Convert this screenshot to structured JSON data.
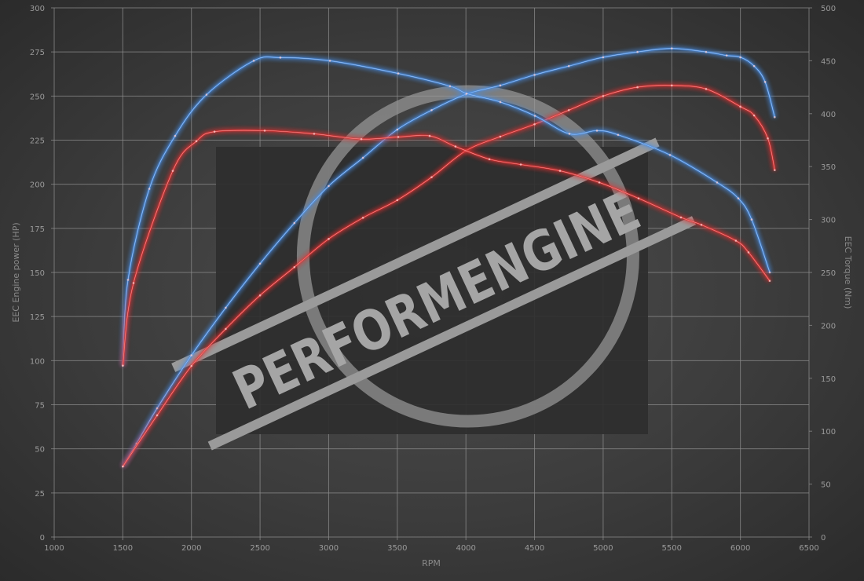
{
  "chart_data": {
    "type": "line",
    "xlabel": "RPM",
    "ylabel": "EEC Engine power (HP)",
    "y2label": "EEC Torque (Nm)",
    "xlim": [
      1000,
      6500
    ],
    "ylim": [
      0,
      300
    ],
    "y2lim": [
      0,
      500
    ],
    "xticks": [
      1000,
      1500,
      2000,
      2500,
      3000,
      3500,
      4000,
      4500,
      5000,
      5500,
      6000,
      6500
    ],
    "yticks": [
      0,
      25,
      50,
      75,
      100,
      125,
      150,
      175,
      200,
      225,
      250,
      275,
      300
    ],
    "y2ticks": [
      0,
      50,
      100,
      150,
      200,
      250,
      300,
      350,
      400,
      450,
      500
    ],
    "grid": true,
    "legend": "none",
    "watermark": "PERFORMENGINE",
    "series": [
      {
        "axis": "left",
        "color": "#4a8fe6",
        "x": [
          1500,
          1600,
          1750,
          2000,
          2250,
          2500,
          2750,
          3000,
          3250,
          3500,
          3750,
          4000,
          4250,
          4500,
          4750,
          5000,
          5250,
          5500,
          5750,
          5900,
          6000,
          6100,
          6180,
          6250
        ],
        "values": [
          40,
          53,
          73,
          103,
          130,
          155,
          178,
          199,
          215,
          231,
          242,
          251,
          256,
          262,
          267,
          272,
          275,
          277,
          275,
          273,
          272,
          267,
          258,
          238
        ]
      },
      {
        "axis": "left",
        "color": "#e23232",
        "x": [
          1500,
          1750,
          2000,
          2250,
          2500,
          2750,
          3000,
          3250,
          3500,
          3750,
          4000,
          4250,
          4500,
          4750,
          5000,
          5250,
          5500,
          5750,
          6000,
          6100,
          6200,
          6250
        ],
        "values": [
          40,
          69,
          97,
          118,
          137,
          153,
          169,
          181,
          191,
          204,
          219,
          227,
          234,
          242,
          250,
          255,
          256,
          254,
          244,
          239,
          226,
          208
        ]
      },
      {
        "axis": "right",
        "color": "#4a8fe6",
        "x": [
          1500,
          1538,
          1693,
          1881,
          2110,
          2454,
          2648,
          3009,
          3507,
          3884,
          4005,
          4251,
          4503,
          4754,
          4955,
          5109,
          5487,
          5830,
          5985,
          6082,
          6214
        ],
        "values": [
          162,
          243,
          329,
          379,
          418,
          450,
          453,
          450,
          438,
          426,
          419,
          411,
          398,
          381,
          384,
          380,
          361,
          335,
          320,
          300,
          250
        ]
      },
      {
        "axis": "right",
        "color": "#e23232",
        "x": [
          1500,
          1578,
          1864,
          2036,
          2168,
          2534,
          2894,
          3238,
          3507,
          3736,
          3924,
          4171,
          4400,
          4686,
          4972,
          5258,
          5567,
          5716,
          5967,
          6059,
          6214
        ],
        "values": [
          162,
          240,
          346,
          374,
          383,
          384,
          381,
          376,
          378,
          379,
          369,
          357,
          352,
          346,
          335,
          320,
          302,
          295,
          280,
          269,
          242
        ]
      }
    ]
  }
}
